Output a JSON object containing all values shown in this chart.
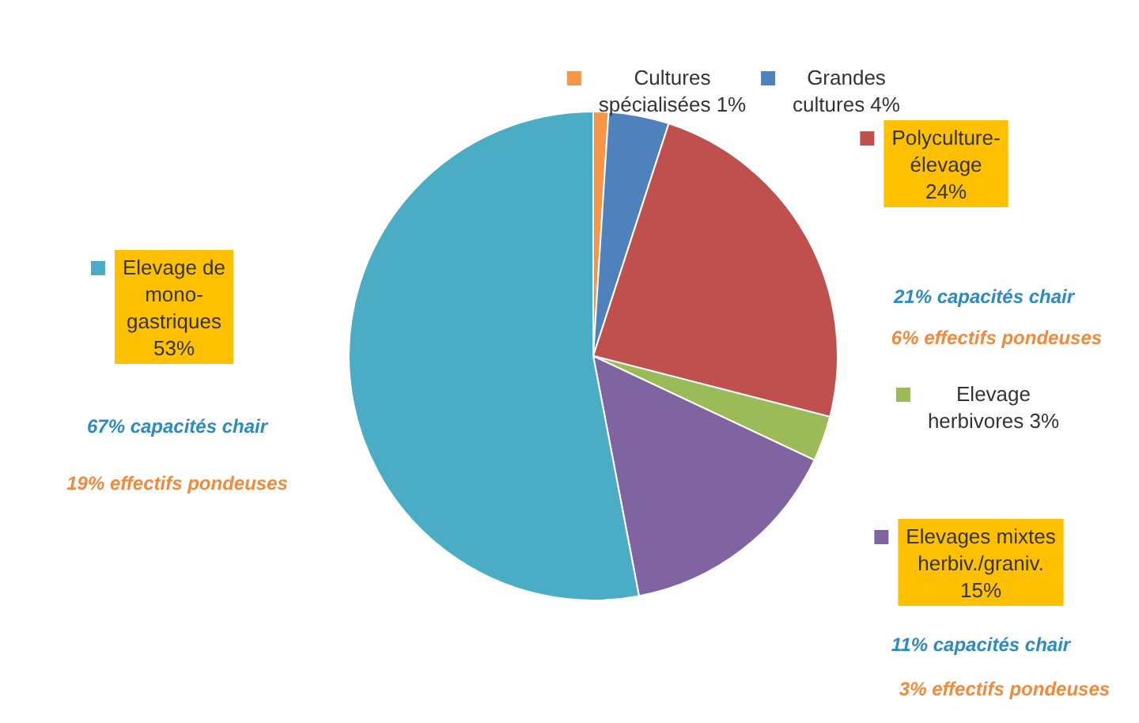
{
  "chart_data": {
    "type": "pie",
    "categories": [
      "Cultures spécialisées",
      "Grandes cultures",
      "Polyculture-élevage",
      "Elevage herbivores",
      "Elevages mixtes herbiv./graniv.",
      "Elevage de mono-gastriques"
    ],
    "values": [
      1,
      4,
      24,
      3,
      15,
      53
    ],
    "value_labels": [
      "1%",
      "4%",
      "24%",
      "3%",
      "15%",
      "53%"
    ],
    "colors": [
      "#f79646",
      "#4f81bd",
      "#c0504d",
      "#9bbb59",
      "#8064a2",
      "#4bacc6"
    ],
    "annotations": [
      {
        "text": "21% capacités chair",
        "x": "Polyculture-élevage"
      },
      {
        "text": "6% effectifs pondeuses",
        "x": "Polyculture-élevage"
      },
      {
        "text": "67% capacités chair",
        "x": "Elevage de mono-gastriques"
      },
      {
        "text": "19% effectifs pondeuses",
        "x": "Elevage de mono-gastriques"
      },
      {
        "text": "11% capacités chair",
        "x": "Elevages mixtes herbiv./graniv."
      },
      {
        "text": "3% effectifs pondeuses",
        "x": "Elevages mixtes herbiv./graniv."
      }
    ],
    "legend": "right"
  }
}
